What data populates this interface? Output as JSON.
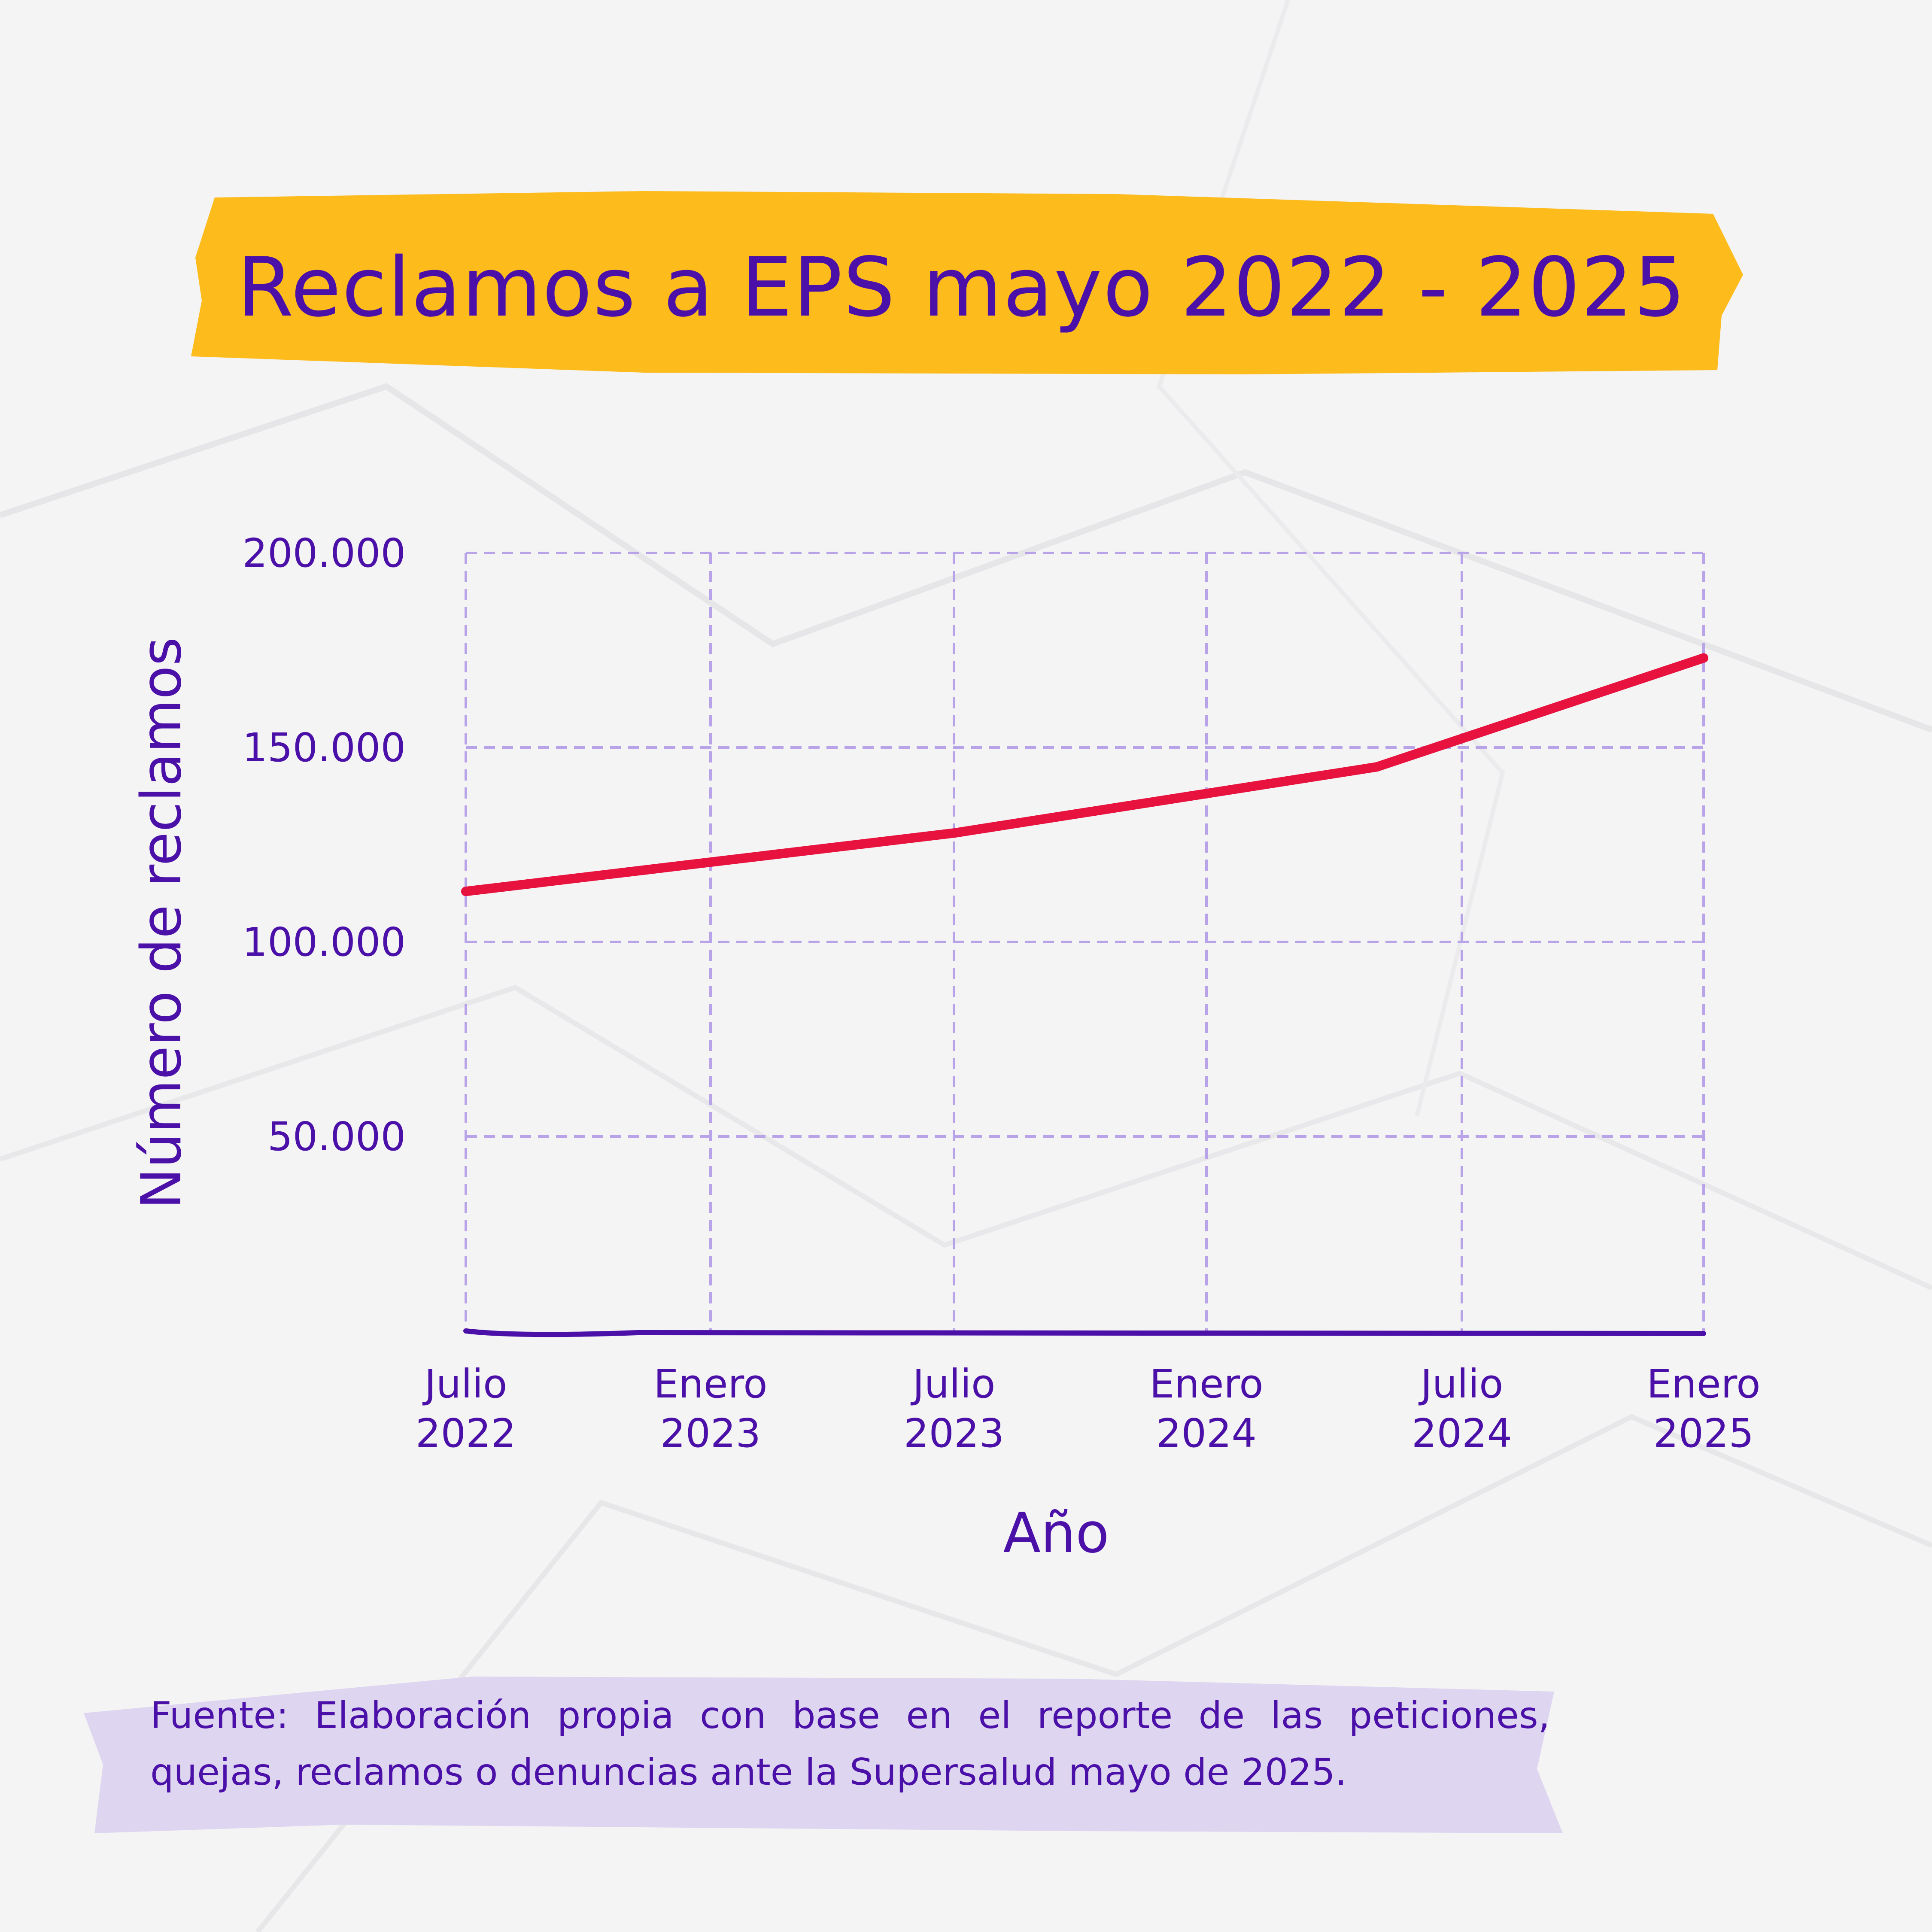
{
  "title": "Reclamos a EPS mayo 2022 - 2025",
  "source": "Fuente: Elaboración propia con base en el reporte de las peticiones, quejas, reclamos o denuncias ante la Supersalud mayo de 2025.",
  "colors": {
    "title_banner": "#fdbb1c",
    "text": "#4b10a8",
    "line": "#e8123f",
    "grid": "#b9a3e8",
    "source_box": "#ded6f0",
    "background": "#f4f4f5"
  },
  "chart_data": {
    "type": "line",
    "xlabel": "Año",
    "ylabel": "Número de reclamos",
    "x_ticks": [
      "Julio 2022",
      "Enero 2023",
      "Julio 2023",
      "Enero 2024",
      "Julio 2024",
      "Enero 2025"
    ],
    "y_ticks": [
      "50.000",
      "100.000",
      "150.000",
      "200.000"
    ],
    "ylim": [
      0,
      200000
    ],
    "grid": true,
    "series": [
      {
        "x": [
          "2022-07",
          "2023-07",
          "2024-05",
          "2025-01"
        ],
        "y": [
          113000,
          128000,
          145000,
          173000
        ]
      }
    ]
  }
}
